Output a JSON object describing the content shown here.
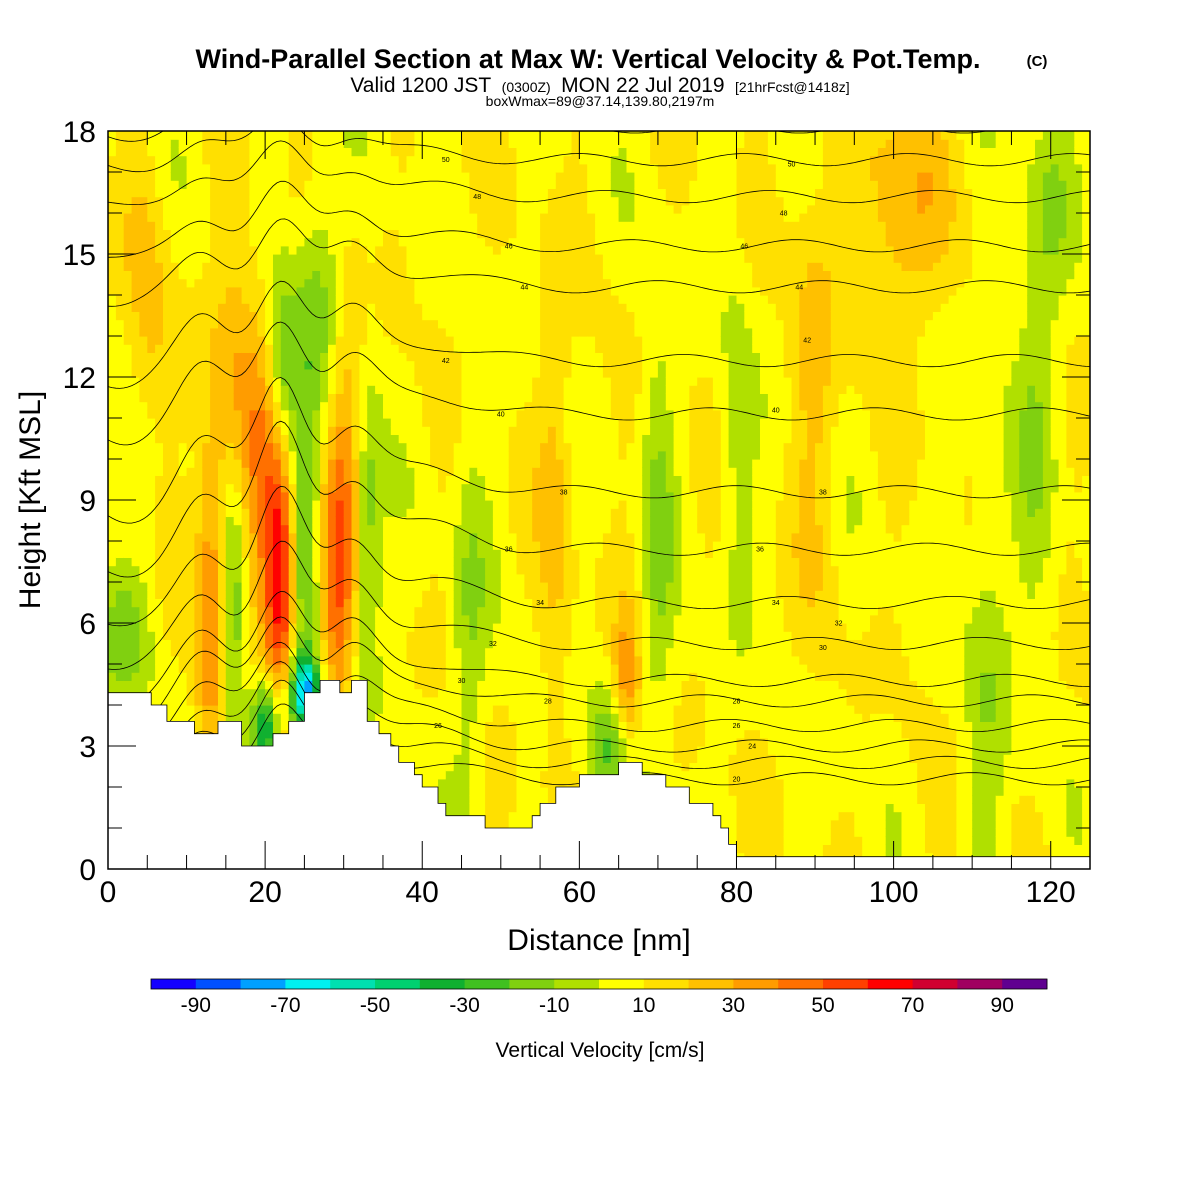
{
  "header": {
    "title": "Wind-Parallel Section at Max W: Vertical Velocity & Pot.Temp.",
    "copyright": "(C)",
    "valid_prefix": "Valid 1200 JST",
    "valid_utc": "(0300Z)",
    "valid_date": "MON 22 Jul 2019",
    "forecast": "[21hrFcst@1418z]",
    "box_max": "boxWmax=89@37.14,139.80,2197m"
  },
  "chart_data": {
    "type": "heatmap",
    "title": "Wind-Parallel Section at Max W: Vertical Velocity & Pot.Temp.",
    "xlabel": "Distance [nm]",
    "ylabel": "Height [Kft MSL]",
    "xlim": [
      0,
      125
    ],
    "ylim": [
      0,
      18
    ],
    "x_ticks": [
      "0",
      "20",
      "40",
      "60",
      "80",
      "100",
      "120"
    ],
    "y_ticks": [
      "0",
      "3",
      "6",
      "9",
      "12",
      "15",
      "18"
    ],
    "colorbar": {
      "label": "Vertical Velocity [cm/s]",
      "tick_labels": [
        "-90",
        "-70",
        "-50",
        "-30",
        "-10",
        "10",
        "30",
        "50",
        "70",
        "90"
      ],
      "bounds": [
        -100,
        100
      ],
      "step": 10,
      "colors": [
        "#1400ff",
        "#0050ff",
        "#00a0ff",
        "#00f0f0",
        "#00e0b0",
        "#00d070",
        "#10b030",
        "#40c020",
        "#80d010",
        "#b0e000",
        "#ffff00",
        "#ffe000",
        "#ffc000",
        "#ff9c00",
        "#ff7000",
        "#ff4000",
        "#ff0000",
        "#d00030",
        "#a00060",
        "#600090"
      ]
    },
    "terrain_kft": [
      [
        0,
        4.3
      ],
      [
        5.5,
        4.3
      ],
      [
        5.5,
        4.0
      ],
      [
        7.5,
        4.0
      ],
      [
        7.5,
        3.6
      ],
      [
        11,
        3.6
      ],
      [
        11,
        3.3
      ],
      [
        14,
        3.3
      ],
      [
        14,
        3.6
      ],
      [
        17,
        3.6
      ],
      [
        17,
        3.0
      ],
      [
        21,
        3.0
      ],
      [
        21,
        3.3
      ],
      [
        23,
        3.3
      ],
      [
        23,
        3.6
      ],
      [
        25,
        3.6
      ],
      [
        25,
        4.3
      ],
      [
        27,
        4.3
      ],
      [
        27,
        4.6
      ],
      [
        29.5,
        4.6
      ],
      [
        29.5,
        4.3
      ],
      [
        31,
        4.3
      ],
      [
        31,
        4.6
      ],
      [
        33,
        4.6
      ],
      [
        33,
        3.6
      ],
      [
        34.5,
        3.6
      ],
      [
        34.5,
        3.3
      ],
      [
        36,
        3.3
      ],
      [
        36,
        3.0
      ],
      [
        37,
        3.0
      ],
      [
        37,
        2.6
      ],
      [
        39,
        2.6
      ],
      [
        39,
        2.3
      ],
      [
        40,
        2.3
      ],
      [
        40,
        2.0
      ],
      [
        42,
        2.0
      ],
      [
        42,
        1.6
      ],
      [
        43,
        1.6
      ],
      [
        43,
        1.3
      ],
      [
        48,
        1.3
      ],
      [
        48,
        1.0
      ],
      [
        54,
        1.0
      ],
      [
        54,
        1.3
      ],
      [
        55,
        1.3
      ],
      [
        55,
        1.6
      ],
      [
        57,
        1.6
      ],
      [
        57,
        2.0
      ],
      [
        60,
        2.0
      ],
      [
        60,
        2.3
      ],
      [
        65,
        2.3
      ],
      [
        65,
        2.6
      ],
      [
        68,
        2.6
      ],
      [
        68,
        2.3
      ],
      [
        71,
        2.3
      ],
      [
        71,
        2.0
      ],
      [
        74,
        2.0
      ],
      [
        74,
        1.6
      ],
      [
        77,
        1.6
      ],
      [
        77,
        1.3
      ],
      [
        78,
        1.3
      ],
      [
        78,
        1.0
      ],
      [
        79,
        1.0
      ],
      [
        79,
        0.6
      ],
      [
        80,
        0.6
      ],
      [
        80,
        0.3
      ],
      [
        125,
        0.3
      ]
    ],
    "w_features": [
      {
        "x": 22,
        "y": 7.0,
        "sx": 1.4,
        "sy": 2.2,
        "w": 55
      },
      {
        "x": 13,
        "y": 6.5,
        "sx": 1.3,
        "sy": 3.0,
        "w": 32
      },
      {
        "x": 29,
        "y": 6.8,
        "sx": 1.5,
        "sy": 2.5,
        "w": 38
      },
      {
        "x": 20,
        "y": 10.0,
        "sx": 1.8,
        "sy": 3.0,
        "w": 28
      },
      {
        "x": 16,
        "y": 11.0,
        "sx": 1.8,
        "sy": 3.0,
        "w": 25
      },
      {
        "x": 31,
        "y": 10.5,
        "sx": 2.0,
        "sy": 3.0,
        "w": 20
      },
      {
        "x": 25,
        "y": 4.3,
        "sx": 1.5,
        "sy": 0.6,
        "w": -75
      },
      {
        "x": 20,
        "y": 3.5,
        "sx": 1.3,
        "sy": 0.8,
        "w": -55
      },
      {
        "x": 16,
        "y": 6.5,
        "sx": 1.2,
        "sy": 3.0,
        "w": -30
      },
      {
        "x": 25,
        "y": 8.0,
        "sx": 1.3,
        "sy": 3.0,
        "w": -28
      },
      {
        "x": 33,
        "y": 8.5,
        "sx": 1.3,
        "sy": 3.0,
        "w": -32
      },
      {
        "x": 22,
        "y": 12.0,
        "sx": 1.5,
        "sy": 2.0,
        "w": -30
      },
      {
        "x": 27,
        "y": 14.0,
        "sx": 2.0,
        "sy": 2.0,
        "w": -22
      },
      {
        "x": 2,
        "y": 5.8,
        "sx": 2.5,
        "sy": 1.2,
        "w": -22
      },
      {
        "x": 66,
        "y": 4.3,
        "sx": 1.2,
        "sy": 1.3,
        "w": 32
      },
      {
        "x": 64,
        "y": 3.0,
        "sx": 2.0,
        "sy": 1.0,
        "w": -28
      },
      {
        "x": 101,
        "y": 16.0,
        "sx": 4.0,
        "sy": 2.0,
        "w": 22
      },
      {
        "x": 90,
        "y": 12.0,
        "sx": 2.0,
        "sy": 4.0,
        "w": 15
      },
      {
        "x": 70,
        "y": 8.0,
        "sx": 1.5,
        "sy": 4.0,
        "w": -18
      },
      {
        "x": 80,
        "y": 10.0,
        "sx": 1.5,
        "sy": 3.0,
        "w": -14
      },
      {
        "x": 57,
        "y": 9.0,
        "sx": 1.5,
        "sy": 4.0,
        "w": 15
      },
      {
        "x": 5,
        "y": 14.0,
        "sx": 2.0,
        "sy": 2.5,
        "w": 14
      },
      {
        "x": 112,
        "y": 5.0,
        "sx": 2.0,
        "sy": 4.0,
        "w": -15
      },
      {
        "x": 118,
        "y": 11.0,
        "sx": 2.0,
        "sy": 4.0,
        "w": -14
      },
      {
        "x": 120,
        "y": 16.0,
        "sx": 2.0,
        "sy": 2.0,
        "w": -14
      },
      {
        "x": 46,
        "y": 6.0,
        "sx": 1.6,
        "sy": 3.0,
        "w": -18
      }
    ],
    "theta_contours": [
      {
        "level": "20",
        "base": 2.2,
        "labels": [
          [
            80,
            2.2
          ]
        ]
      },
      {
        "level": "22",
        "base": 2.6,
        "labels": []
      },
      {
        "level": "24",
        "base": 3.0,
        "labels": [
          [
            82,
            3.0
          ]
        ]
      },
      {
        "level": "26",
        "base": 3.5,
        "labels": [
          [
            42,
            3.5
          ],
          [
            80,
            3.5
          ]
        ]
      },
      {
        "level": "28",
        "base": 4.1,
        "labels": [
          [
            56,
            4.1
          ],
          [
            80,
            4.1
          ]
        ]
      },
      {
        "level": "30",
        "base": 4.6,
        "labels": [
          [
            45,
            4.6
          ],
          [
            91,
            5.4
          ]
        ]
      },
      {
        "level": "32",
        "base": 5.5,
        "labels": [
          [
            49,
            5.5
          ],
          [
            93,
            6.0
          ]
        ]
      },
      {
        "level": "34",
        "base": 6.5,
        "labels": [
          [
            55,
            6.5
          ],
          [
            85,
            6.5
          ]
        ]
      },
      {
        "level": "36",
        "base": 7.8,
        "labels": [
          [
            51,
            7.8
          ],
          [
            83,
            7.8
          ]
        ]
      },
      {
        "level": "38",
        "base": 9.2,
        "labels": [
          [
            58,
            9.2
          ],
          [
            91,
            9.2
          ]
        ]
      },
      {
        "level": "40",
        "base": 11.1,
        "labels": [
          [
            50,
            11.1
          ],
          [
            85,
            11.2
          ]
        ]
      },
      {
        "level": "42",
        "base": 12.4,
        "labels": [
          [
            43,
            12.4
          ],
          [
            89,
            12.9
          ]
        ]
      },
      {
        "level": "44",
        "base": 14.2,
        "labels": [
          [
            53,
            14.2
          ],
          [
            88,
            14.2
          ]
        ]
      },
      {
        "level": "46",
        "base": 15.2,
        "labels": [
          [
            51,
            15.2
          ],
          [
            81,
            15.2
          ]
        ]
      },
      {
        "level": "48",
        "base": 16.4,
        "labels": [
          [
            47,
            16.4
          ],
          [
            86,
            16.0
          ]
        ]
      },
      {
        "level": "50",
        "base": 17.3,
        "labels": [
          [
            43,
            17.3
          ],
          [
            87,
            17.2
          ]
        ]
      },
      {
        "level": "52",
        "base": 18.1,
        "labels": []
      }
    ],
    "theta_perturb": [
      {
        "x": 22,
        "amp": 3.0,
        "sx": 3.0
      },
      {
        "x": 12,
        "amp": 1.5,
        "sx": 3.0
      },
      {
        "x": 31,
        "amp": 1.6,
        "sx": 3.0
      },
      {
        "x": 40,
        "amp": 0.6,
        "sx": 6.0
      },
      {
        "x": 2,
        "amp": -0.8,
        "sx": 4.0
      }
    ]
  }
}
